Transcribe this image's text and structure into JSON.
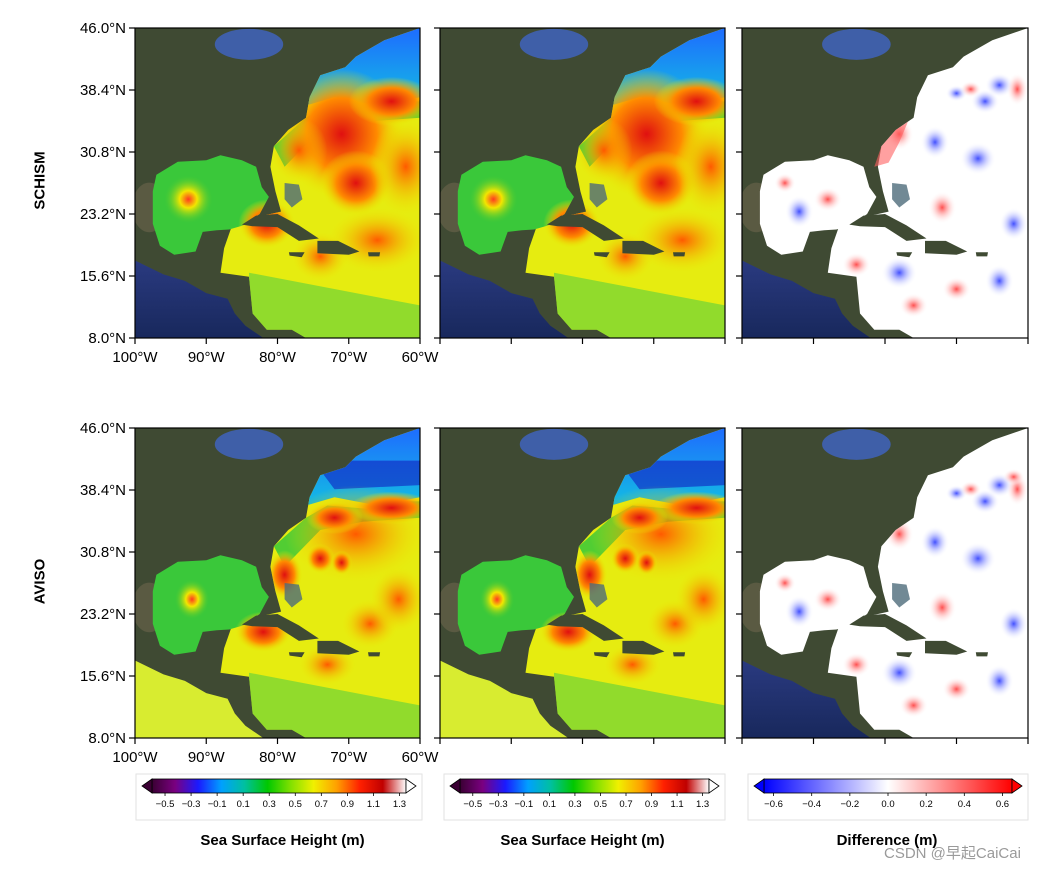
{
  "chart_data": {
    "type": "heatmap",
    "row_labels": [
      "SCHISM",
      "AVISO"
    ],
    "panel_grid": {
      "rows": 2,
      "cols": 3
    },
    "y_axis": {
      "ticks": [
        "46.0°N",
        "38.4°N",
        "30.8°N",
        "23.2°N",
        "15.6°N",
        "8.0°N"
      ],
      "values": [
        46.0,
        38.4,
        30.8,
        23.2,
        15.6,
        8.0
      ],
      "ylim": [
        8.0,
        46.0
      ]
    },
    "x_axis": {
      "ticks": [
        "100°W",
        "90°W",
        "80°W",
        "70°W",
        "60°W"
      ],
      "values": [
        -100,
        -90,
        -80,
        -70,
        -60
      ],
      "xlim": [
        -100,
        -60
      ]
    },
    "colorbars": [
      {
        "title": "Sea Surface Height (m)",
        "ticks": [
          "−0.5",
          "−0.3",
          "−0.1",
          "0.1",
          "0.3",
          "0.5",
          "0.7",
          "0.9",
          "1.1",
          "1.3"
        ],
        "range": [
          -0.6,
          1.35
        ],
        "colors": [
          "#3a0033",
          "#7a0080",
          "#1a1aff",
          "#00a0ff",
          "#00c0a0",
          "#00c800",
          "#80e000",
          "#f0f000",
          "#ffa000",
          "#ff2000",
          "#c00000",
          "#ffffff"
        ],
        "extend": "both"
      },
      {
        "title": "Sea Surface Height (m)",
        "ticks": [
          "−0.5",
          "−0.3",
          "−0.1",
          "0.1",
          "0.3",
          "0.5",
          "0.7",
          "0.9",
          "1.1",
          "1.3"
        ],
        "range": [
          -0.6,
          1.35
        ],
        "colors": [
          "#3a0033",
          "#7a0080",
          "#1a1aff",
          "#00a0ff",
          "#00c0a0",
          "#00c800",
          "#80e000",
          "#f0f000",
          "#ffa000",
          "#ff2000",
          "#c00000",
          "#ffffff"
        ],
        "extend": "both"
      },
      {
        "title": "Difference (m)",
        "ticks": [
          "−0.6",
          "−0.4",
          "−0.2",
          "0.0",
          "0.2",
          "0.4",
          "0.6"
        ],
        "range": [
          -0.65,
          0.65
        ],
        "colors": [
          "#0000ff",
          "#8080ff",
          "#ffffff",
          "#ff8080",
          "#ff0000"
        ],
        "extend": "both"
      }
    ]
  },
  "watermark": "CSDN @早起CaiCai"
}
